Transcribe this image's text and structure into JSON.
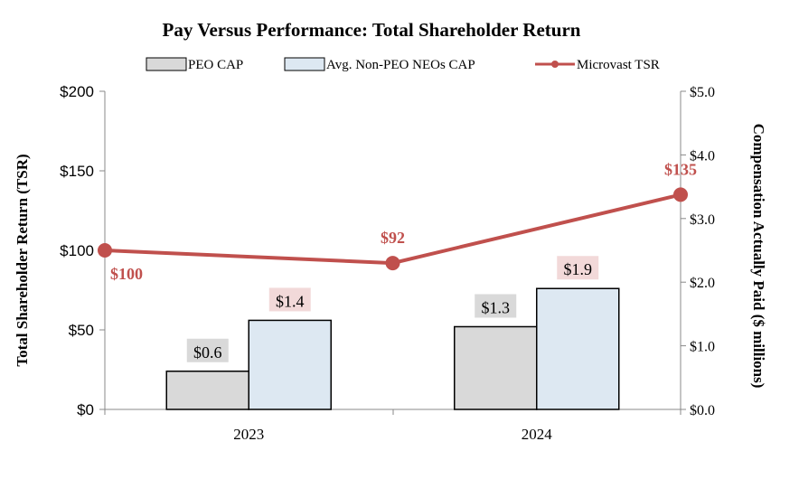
{
  "chart_data": {
    "type": "bar",
    "title": "Pay Versus Performance: Total Shareholder Return",
    "categories": [
      "2023",
      "2024"
    ],
    "series": [
      {
        "name": "PEO CAP",
        "kind": "bar",
        "axis": "right",
        "values": [
          0.6,
          1.3
        ],
        "labels": [
          "$0.6",
          "$1.3"
        ],
        "color": "#d9d9d9"
      },
      {
        "name": "Avg. Non-PEO NEOs CAP",
        "kind": "bar",
        "axis": "right",
        "values": [
          1.4,
          1.9
        ],
        "labels": [
          "$1.4",
          "$1.9"
        ],
        "color": "#dde8f2"
      },
      {
        "name": "Microvast TSR",
        "kind": "line",
        "axis": "left",
        "x": [
          "start",
          "2023/2024",
          "end"
        ],
        "values": [
          100,
          92,
          135
        ],
        "labels": [
          "$100",
          "$92",
          "$135"
        ],
        "color": "#c0504d"
      }
    ],
    "ylabel": "Total Shareholder Return (TSR)",
    "y2label": "Compensation Actually Paid ($ millions)",
    "ylim": [
      0,
      200
    ],
    "y2lim": [
      0,
      5
    ],
    "yticks": [
      "$0",
      "$50",
      "$100",
      "$150",
      "$200"
    ],
    "y2ticks": [
      "$0.0",
      "$1.0",
      "$2.0",
      "$3.0",
      "$4.0",
      "$5.0"
    ],
    "legend_position": "top",
    "grid": false
  },
  "colors": {
    "bar_outline": "#000000",
    "label_bg_peo": "#d9d9d9",
    "label_bg_neo": "#f2d9d9",
    "tsr_label": "#c0504d",
    "axis": "#888888"
  }
}
